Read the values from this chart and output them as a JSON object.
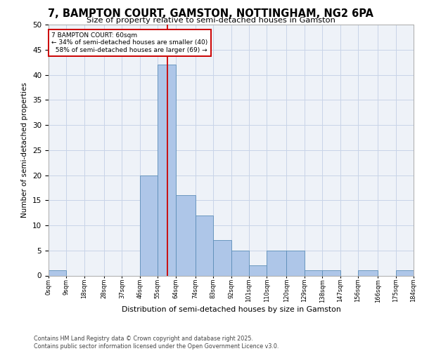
{
  "title_line1": "7, BAMPTON COURT, GAMSTON, NOTTINGHAM, NG2 6PA",
  "title_line2": "Size of property relative to semi-detached houses in Gamston",
  "xlabel": "Distribution of semi-detached houses by size in Gamston",
  "ylabel": "Number of semi-detached properties",
  "bar_edges": [
    0,
    9,
    18,
    28,
    37,
    46,
    55,
    64,
    74,
    83,
    92,
    101,
    110,
    120,
    129,
    138,
    147,
    156,
    166,
    175,
    184
  ],
  "bar_heights": [
    1,
    0,
    0,
    0,
    0,
    20,
    42,
    16,
    12,
    7,
    5,
    2,
    5,
    5,
    1,
    1,
    0,
    1,
    0,
    1
  ],
  "tick_labels": [
    "0sqm",
    "9sqm",
    "18sqm",
    "28sqm",
    "37sqm",
    "46sqm",
    "55sqm",
    "64sqm",
    "74sqm",
    "83sqm",
    "92sqm",
    "101sqm",
    "110sqm",
    "120sqm",
    "129sqm",
    "138sqm",
    "147sqm",
    "156sqm",
    "166sqm",
    "175sqm",
    "184sqm"
  ],
  "property_size": 60,
  "property_label": "7 BAMPTON COURT: 60sqm",
  "pct_smaller": 34,
  "count_smaller": 40,
  "pct_larger": 58,
  "count_larger": 69,
  "bar_color": "#AEC6E8",
  "bar_edge_color": "#5B8DB8",
  "vline_color": "#CC0000",
  "annotation_box_color": "#CC0000",
  "grid_color": "#C8D4E8",
  "background_color": "#EEF2F8",
  "footer_text": "Contains HM Land Registry data © Crown copyright and database right 2025.\nContains public sector information licensed under the Open Government Licence v3.0.",
  "ylim": [
    0,
    50
  ],
  "yticks": [
    0,
    5,
    10,
    15,
    20,
    25,
    30,
    35,
    40,
    45,
    50
  ]
}
